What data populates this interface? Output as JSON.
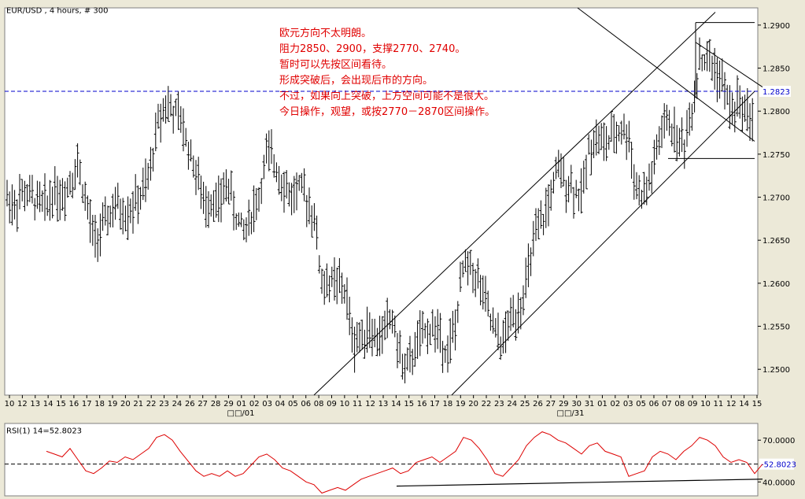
{
  "chart_data": [
    {
      "type": "ohlc",
      "title": "EUR/USD , 4 hours, # 300",
      "ylim": [
        1.247,
        1.292
      ],
      "yticks": [
        "1.2900",
        "1.2850",
        "1.2800",
        "1.2750",
        "1.2700",
        "1.2650",
        "1.2600",
        "1.2550",
        "1.2500"
      ],
      "ytick_values": [
        1.29,
        1.285,
        1.28,
        1.275,
        1.27,
        1.265,
        1.26,
        1.255,
        1.25
      ],
      "current_price_label": "1.2823",
      "current_price": 1.2823,
      "x_ticks": [
        "10",
        "12",
        "13",
        "14",
        "15",
        "16",
        "17",
        "18",
        "19",
        "20",
        "21",
        "22",
        "23",
        "24",
        "26",
        "27",
        "28",
        "29",
        "01",
        "02",
        "03",
        "04",
        "05",
        "06",
        "08",
        "09",
        "10",
        "11",
        "12",
        "13",
        "14",
        "15",
        "16",
        "17",
        "18",
        "19",
        "20",
        "22",
        "23",
        "24",
        "25",
        "26",
        "27",
        "29",
        "30",
        "31",
        "01",
        "02",
        "03",
        "05",
        "06",
        "07",
        "08",
        "09",
        "10",
        "11",
        "12",
        "14",
        "15"
      ],
      "month_labels": [
        "□□/01",
        "□□/31"
      ],
      "annotations": [
        "欧元方向不太明朗。",
        "阻力2850、2900，支撑2770、2740。",
        "暂时可以先按区间看待。",
        "形成突破后，会出现后市的方向。",
        "不过，如果向上突破，上方空间可能不是很大。",
        "今日操作，观望，或按2770－2870区间操作。"
      ],
      "price_path": [
        [
          0,
          1.27
        ],
        [
          10,
          1.269
        ],
        [
          20,
          1.2705
        ],
        [
          30,
          1.27
        ],
        [
          40,
          1.2695
        ],
        [
          50,
          1.269
        ],
        [
          60,
          1.271
        ],
        [
          70,
          1.27
        ],
        [
          80,
          1.272
        ],
        [
          90,
          1.274
        ],
        [
          100,
          1.2695
        ],
        [
          110,
          1.265
        ],
        [
          120,
          1.266
        ],
        [
          130,
          1.268
        ],
        [
          140,
          1.269
        ],
        [
          150,
          1.268
        ],
        [
          160,
          1.269
        ],
        [
          170,
          1.27
        ],
        [
          180,
          1.272
        ],
        [
          190,
          1.278
        ],
        [
          200,
          1.281
        ],
        [
          210,
          1.28
        ],
        [
          220,
          1.279
        ],
        [
          230,
          1.276
        ],
        [
          240,
          1.273
        ],
        [
          250,
          1.269
        ],
        [
          260,
          1.27
        ],
        [
          270,
          1.269
        ],
        [
          280,
          1.272
        ],
        [
          290,
          1.268
        ],
        [
          300,
          1.266
        ],
        [
          310,
          1.268
        ],
        [
          320,
          1.27
        ],
        [
          330,
          1.275
        ],
        [
          340,
          1.274
        ],
        [
          350,
          1.272
        ],
        [
          360,
          1.27
        ],
        [
          370,
          1.271
        ],
        [
          380,
          1.27
        ],
        [
          390,
          1.268
        ],
        [
          400,
          1.26
        ],
        [
          410,
          1.26
        ],
        [
          420,
          1.26
        ],
        [
          430,
          1.259
        ],
        [
          440,
          1.253
        ],
        [
          450,
          1.254
        ],
        [
          460,
          1.255
        ],
        [
          470,
          1.253
        ],
        [
          480,
          1.255
        ],
        [
          490,
          1.256
        ],
        [
          500,
          1.251
        ],
        [
          510,
          1.25
        ],
        [
          520,
          1.253
        ],
        [
          530,
          1.254
        ],
        [
          540,
          1.255
        ],
        [
          550,
          1.254
        ],
        [
          560,
          1.252
        ],
        [
          570,
          1.255
        ],
        [
          580,
          1.262
        ],
        [
          590,
          1.262
        ],
        [
          600,
          1.26
        ],
        [
          610,
          1.257
        ],
        [
          620,
          1.254
        ],
        [
          630,
          1.253
        ],
        [
          640,
          1.256
        ],
        [
          650,
          1.257
        ],
        [
          660,
          1.26
        ],
        [
          670,
          1.265
        ],
        [
          680,
          1.267
        ],
        [
          690,
          1.27
        ],
        [
          700,
          1.273
        ],
        [
          710,
          1.272
        ],
        [
          720,
          1.271
        ],
        [
          730,
          1.27
        ],
        [
          740,
          1.276
        ],
        [
          750,
          1.277
        ],
        [
          760,
          1.276
        ],
        [
          770,
          1.277
        ],
        [
          780,
          1.278
        ],
        [
          790,
          1.277
        ],
        [
          800,
          1.271
        ],
        [
          810,
          1.27
        ],
        [
          820,
          1.273
        ],
        [
          830,
          1.277
        ],
        [
          840,
          1.279
        ],
        [
          850,
          1.277
        ],
        [
          860,
          1.276
        ],
        [
          870,
          1.28
        ],
        [
          880,
          1.286
        ],
        [
          890,
          1.286
        ],
        [
          900,
          1.285
        ],
        [
          910,
          1.283
        ],
        [
          920,
          1.28
        ],
        [
          930,
          1.281
        ],
        [
          940,
          1.28
        ],
        [
          950,
          1.279
        ],
        [
          960,
          1.282
        ]
      ],
      "dashed_line_y": 1.2823
    },
    {
      "type": "line",
      "title": "RSI(1) 14=52.8023",
      "ylim": [
        30,
        82
      ],
      "yticks": [
        "70.0000",
        "40.0000"
      ],
      "ytick_values": [
        70,
        40
      ],
      "current_label": "52.8023",
      "current_value": 52.8023,
      "rsi_path": [
        [
          50,
          62
        ],
        [
          60,
          60
        ],
        [
          70,
          58
        ],
        [
          80,
          64
        ],
        [
          90,
          56
        ],
        [
          100,
          48
        ],
        [
          110,
          46
        ],
        [
          120,
          50
        ],
        [
          130,
          55
        ],
        [
          140,
          54
        ],
        [
          150,
          58
        ],
        [
          160,
          56
        ],
        [
          170,
          60
        ],
        [
          180,
          64
        ],
        [
          190,
          72
        ],
        [
          200,
          74
        ],
        [
          210,
          70
        ],
        [
          220,
          62
        ],
        [
          230,
          55
        ],
        [
          240,
          48
        ],
        [
          250,
          44
        ],
        [
          260,
          46
        ],
        [
          270,
          44
        ],
        [
          280,
          48
        ],
        [
          290,
          44
        ],
        [
          300,
          46
        ],
        [
          310,
          52
        ],
        [
          320,
          58
        ],
        [
          330,
          60
        ],
        [
          340,
          56
        ],
        [
          350,
          50
        ],
        [
          360,
          48
        ],
        [
          370,
          44
        ],
        [
          380,
          40
        ],
        [
          390,
          38
        ],
        [
          400,
          32
        ],
        [
          410,
          34
        ],
        [
          420,
          36
        ],
        [
          430,
          34
        ],
        [
          440,
          38
        ],
        [
          450,
          42
        ],
        [
          460,
          44
        ],
        [
          470,
          46
        ],
        [
          480,
          48
        ],
        [
          490,
          50
        ],
        [
          500,
          46
        ],
        [
          510,
          48
        ],
        [
          520,
          54
        ],
        [
          530,
          56
        ],
        [
          540,
          58
        ],
        [
          550,
          54
        ],
        [
          560,
          58
        ],
        [
          570,
          62
        ],
        [
          580,
          72
        ],
        [
          590,
          70
        ],
        [
          600,
          64
        ],
        [
          610,
          56
        ],
        [
          620,
          46
        ],
        [
          630,
          44
        ],
        [
          640,
          50
        ],
        [
          650,
          56
        ],
        [
          660,
          66
        ],
        [
          670,
          72
        ],
        [
          680,
          76
        ],
        [
          690,
          74
        ],
        [
          700,
          70
        ],
        [
          710,
          68
        ],
        [
          720,
          64
        ],
        [
          730,
          60
        ],
        [
          740,
          66
        ],
        [
          750,
          68
        ],
        [
          760,
          62
        ],
        [
          770,
          60
        ],
        [
          780,
          58
        ],
        [
          790,
          44
        ],
        [
          800,
          46
        ],
        [
          810,
          48
        ],
        [
          820,
          58
        ],
        [
          830,
          62
        ],
        [
          840,
          60
        ],
        [
          850,
          56
        ],
        [
          860,
          62
        ],
        [
          870,
          66
        ],
        [
          880,
          72
        ],
        [
          890,
          70
        ],
        [
          900,
          66
        ],
        [
          910,
          58
        ],
        [
          920,
          54
        ],
        [
          930,
          56
        ],
        [
          940,
          54
        ],
        [
          950,
          46
        ],
        [
          960,
          52.8
        ]
      ]
    }
  ]
}
